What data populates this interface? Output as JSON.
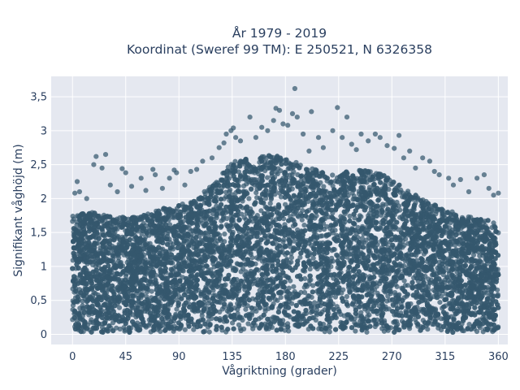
{
  "chart_data": {
    "type": "scatter",
    "title": "År 1979 - 2019",
    "subtitle": "Koordinat (Sweref 99 TM): E 250521, N 6326358",
    "xlabel": "Vågriktning (grader)",
    "ylabel": "Signifikant våghöjd (m)",
    "xlim": [
      -18,
      368
    ],
    "ylim": [
      -0.15,
      3.8
    ],
    "xticks": [
      0,
      45,
      90,
      135,
      180,
      225,
      270,
      315,
      360
    ],
    "xtick_labels": [
      "0",
      "45",
      "90",
      "135",
      "180",
      "225",
      "270",
      "315",
      "360"
    ],
    "yticks": [
      0,
      0.5,
      1,
      1.5,
      2,
      2.5,
      3,
      3.5
    ],
    "ytick_labels": [
      "0",
      "0,5",
      "1",
      "1,5",
      "2",
      "2,5",
      "3",
      "3,5"
    ],
    "grid": true,
    "marker_color": "#34586e",
    "plot_background": "#e5e8f0",
    "envelope": {
      "direction": [
        0,
        15,
        30,
        45,
        60,
        75,
        90,
        105,
        120,
        135,
        150,
        165,
        180,
        195,
        210,
        225,
        240,
        255,
        270,
        285,
        300,
        315,
        330,
        345,
        360
      ],
      "max_height": [
        1.75,
        1.8,
        1.75,
        1.72,
        1.75,
        1.85,
        1.9,
        2.0,
        2.25,
        2.55,
        2.6,
        2.65,
        2.6,
        2.5,
        2.4,
        2.35,
        2.45,
        2.4,
        2.3,
        2.1,
        1.95,
        1.85,
        1.75,
        1.7,
        1.65
      ]
    },
    "outliers": [
      {
        "x": 2,
        "y": 2.08
      },
      {
        "x": 4,
        "y": 2.25
      },
      {
        "x": 6,
        "y": 2.1
      },
      {
        "x": 12,
        "y": 2.0
      },
      {
        "x": 18,
        "y": 2.5
      },
      {
        "x": 20,
        "y": 2.62
      },
      {
        "x": 25,
        "y": 2.45
      },
      {
        "x": 28,
        "y": 2.65
      },
      {
        "x": 32,
        "y": 2.2
      },
      {
        "x": 38,
        "y": 2.1
      },
      {
        "x": 42,
        "y": 2.44
      },
      {
        "x": 45,
        "y": 2.38
      },
      {
        "x": 50,
        "y": 2.18
      },
      {
        "x": 58,
        "y": 2.3
      },
      {
        "x": 62,
        "y": 2.12
      },
      {
        "x": 68,
        "y": 2.43
      },
      {
        "x": 70,
        "y": 2.35
      },
      {
        "x": 76,
        "y": 2.15
      },
      {
        "x": 82,
        "y": 2.3
      },
      {
        "x": 86,
        "y": 2.42
      },
      {
        "x": 88,
        "y": 2.38
      },
      {
        "x": 95,
        "y": 2.2
      },
      {
        "x": 100,
        "y": 2.4
      },
      {
        "x": 105,
        "y": 2.43
      },
      {
        "x": 110,
        "y": 2.55
      },
      {
        "x": 118,
        "y": 2.6
      },
      {
        "x": 124,
        "y": 2.75
      },
      {
        "x": 128,
        "y": 2.82
      },
      {
        "x": 130,
        "y": 2.95
      },
      {
        "x": 134,
        "y": 3.0
      },
      {
        "x": 136,
        "y": 3.04
      },
      {
        "x": 138,
        "y": 2.9
      },
      {
        "x": 142,
        "y": 2.85
      },
      {
        "x": 150,
        "y": 3.2
      },
      {
        "x": 155,
        "y": 2.9
      },
      {
        "x": 160,
        "y": 3.05
      },
      {
        "x": 165,
        "y": 3.0
      },
      {
        "x": 170,
        "y": 3.15
      },
      {
        "x": 172,
        "y": 3.33
      },
      {
        "x": 175,
        "y": 3.3
      },
      {
        "x": 178,
        "y": 3.1
      },
      {
        "x": 182,
        "y": 3.08
      },
      {
        "x": 186,
        "y": 3.25
      },
      {
        "x": 188,
        "y": 3.62
      },
      {
        "x": 190,
        "y": 3.2
      },
      {
        "x": 195,
        "y": 2.95
      },
      {
        "x": 200,
        "y": 2.7
      },
      {
        "x": 202,
        "y": 3.28
      },
      {
        "x": 208,
        "y": 2.9
      },
      {
        "x": 212,
        "y": 2.75
      },
      {
        "x": 220,
        "y": 3.0
      },
      {
        "x": 224,
        "y": 3.34
      },
      {
        "x": 228,
        "y": 2.9
      },
      {
        "x": 232,
        "y": 3.2
      },
      {
        "x": 236,
        "y": 2.8
      },
      {
        "x": 240,
        "y": 2.72
      },
      {
        "x": 244,
        "y": 2.95
      },
      {
        "x": 250,
        "y": 2.85
      },
      {
        "x": 256,
        "y": 2.95
      },
      {
        "x": 260,
        "y": 2.9
      },
      {
        "x": 266,
        "y": 2.78
      },
      {
        "x": 272,
        "y": 2.74
      },
      {
        "x": 276,
        "y": 2.93
      },
      {
        "x": 280,
        "y": 2.6
      },
      {
        "x": 285,
        "y": 2.7
      },
      {
        "x": 290,
        "y": 2.45
      },
      {
        "x": 296,
        "y": 2.6
      },
      {
        "x": 302,
        "y": 2.55
      },
      {
        "x": 306,
        "y": 2.4
      },
      {
        "x": 310,
        "y": 2.35
      },
      {
        "x": 318,
        "y": 2.3
      },
      {
        "x": 322,
        "y": 2.2
      },
      {
        "x": 328,
        "y": 2.28
      },
      {
        "x": 335,
        "y": 2.1
      },
      {
        "x": 342,
        "y": 2.3
      },
      {
        "x": 348,
        "y": 2.35
      },
      {
        "x": 352,
        "y": 2.15
      },
      {
        "x": 356,
        "y": 2.05
      },
      {
        "x": 360,
        "y": 2.08
      }
    ]
  }
}
